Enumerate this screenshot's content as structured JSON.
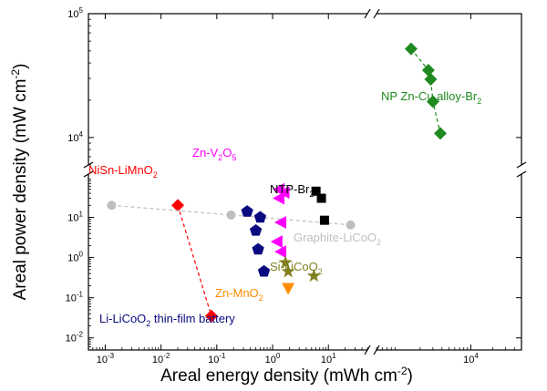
{
  "chart_data": {
    "type": "scatter",
    "title": "",
    "xlabel": "Areal energy density (mWh cm⁻²)",
    "ylabel": "Areal power density (mW cm⁻²)",
    "x_axis": {
      "scale": "log-broken",
      "lower_segment": {
        "range": [
          0.0005,
          50
        ],
        "ticks": [
          {
            "value": 0.001,
            "base": "10",
            "exp": "-3"
          },
          {
            "value": 0.01,
            "base": "10",
            "exp": "-2"
          },
          {
            "value": 0.1,
            "base": "10",
            "exp": "-1"
          },
          {
            "value": 1,
            "base": "10",
            "exp": "0"
          },
          {
            "value": 10,
            "base": "10",
            "exp": "1"
          }
        ]
      },
      "upper_segment": {
        "range": [
          500,
          50000
        ],
        "ticks": [
          {
            "value": 10000,
            "base": "10",
            "exp": "4"
          }
        ]
      }
    },
    "y_axis": {
      "scale": "log-broken",
      "lower_segment": {
        "range": [
          0.005,
          120
        ],
        "ticks": [
          {
            "value": 0.01,
            "base": "10",
            "exp": "-2"
          },
          {
            "value": 0.1,
            "base": "10",
            "exp": "-1"
          },
          {
            "value": 1,
            "base": "10",
            "exp": "0"
          },
          {
            "value": 10,
            "base": "10",
            "exp": "1"
          }
        ]
      },
      "upper_segment": {
        "range": [
          6000,
          100000
        ],
        "ticks": [
          {
            "value": 10000,
            "base": "10",
            "exp": "4"
          },
          {
            "value": 100000,
            "base": "10",
            "exp": "5"
          }
        ]
      }
    },
    "grid": false,
    "series": [
      {
        "name": "NP Zn-Cu alloy-Br",
        "name_sub": "2",
        "color": "#1f8a1f",
        "marker": "diamond",
        "dashed_line": true,
        "points": [
          [
            1500,
            52000
          ],
          [
            2600,
            35000
          ],
          [
            2800,
            29500
          ],
          [
            3000,
            19500
          ],
          [
            3800,
            10800
          ]
        ]
      },
      {
        "name": "NiSn-LiMnO",
        "name_sub": "2",
        "color": "#ff0000",
        "marker": "diamond",
        "dashed_line": true,
        "points": [
          [
            0.02,
            20
          ],
          [
            0.08,
            0.035
          ]
        ]
      },
      {
        "name": "Graphite-LiCoO",
        "name_sub": "2",
        "color": "#bfbfbf",
        "marker": "circle",
        "dashed_line": true,
        "points": [
          [
            0.0013,
            20
          ],
          [
            0.18,
            11.5
          ],
          [
            25,
            6.5
          ]
        ]
      },
      {
        "name": "Zn-V",
        "name_sub": "2",
        "name_mid": "O",
        "name_sub2": "5",
        "color": "#ff00ff",
        "marker": "triangle-left",
        "dashed_line": false,
        "points": [
          [
            1.3,
            50
          ],
          [
            1.6,
            42
          ],
          [
            1.3,
            30
          ],
          [
            1.4,
            7.5
          ],
          [
            1.2,
            2.5
          ],
          [
            1.4,
            1.4
          ]
        ]
      },
      {
        "name": "NTP-Br",
        "name_sub": "2",
        "color": "#000000",
        "marker": "square",
        "dashed_line": false,
        "points": [
          [
            6,
            45
          ],
          [
            7.5,
            30
          ],
          [
            8.5,
            8.5
          ]
        ]
      },
      {
        "name": "Li-LiCoO",
        "name_sub": "2",
        "name_suffix": " thin-film battery",
        "color": "#0a0a80",
        "marker": "pentagon",
        "dashed_line": false,
        "points": [
          [
            0.35,
            14
          ],
          [
            0.6,
            10
          ],
          [
            0.5,
            4.7
          ],
          [
            0.55,
            1.6
          ],
          [
            0.7,
            0.45
          ]
        ]
      },
      {
        "name": "Si-LiCoO",
        "name_sub": "2",
        "color": "#808020",
        "marker": "star",
        "dashed_line": false,
        "points": [
          [
            1.7,
            0.75
          ],
          [
            1.9,
            0.45
          ],
          [
            5.5,
            0.35
          ]
        ]
      },
      {
        "name": "Zn-MnO",
        "name_sub": "2",
        "color": "#ff8c00",
        "marker": "triangle-down",
        "dashed_line": false,
        "points": [
          [
            1.9,
            0.17
          ]
        ]
      }
    ]
  }
}
